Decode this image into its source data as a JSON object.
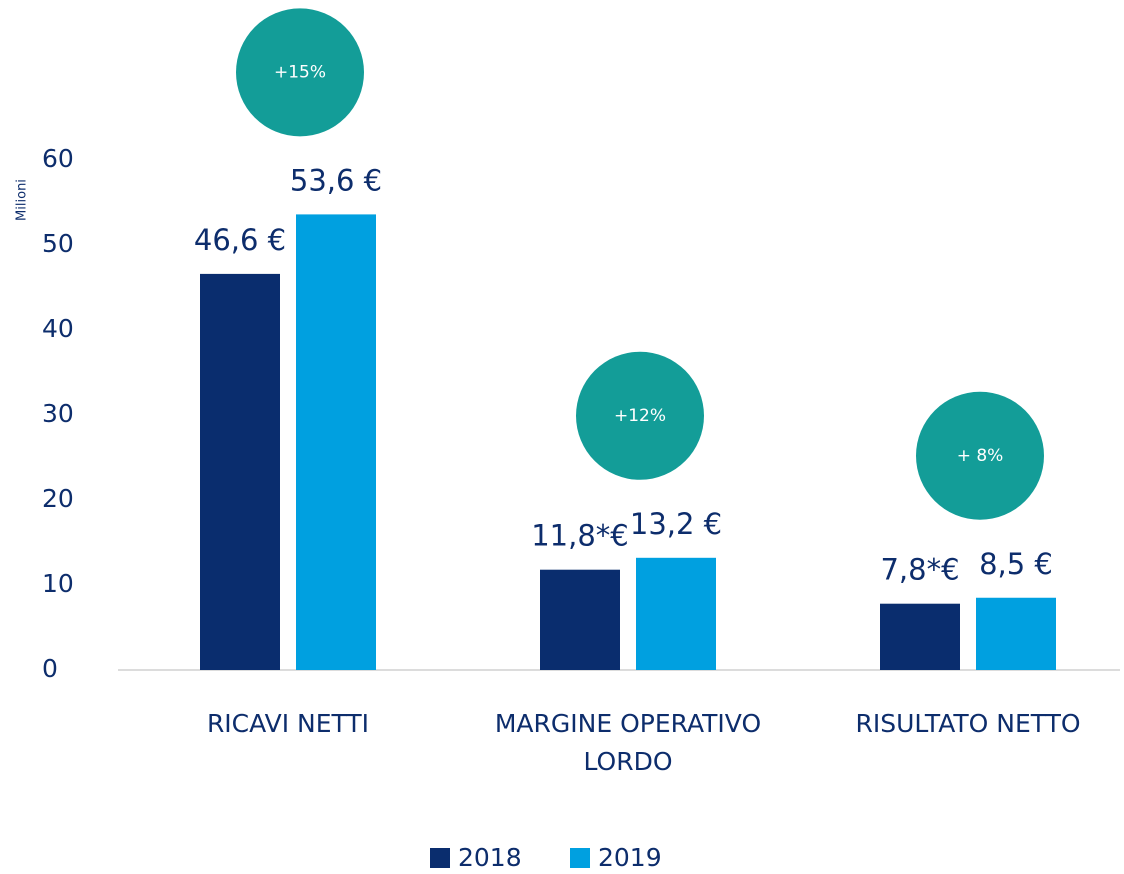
{
  "chart_data": {
    "type": "bar",
    "y_label": "Milioni",
    "categories": [
      "RICAVI NETTI",
      "MARGINE OPERATIVO LORDO",
      "RISULTATO NETTO"
    ],
    "series": [
      {
        "name": "2018",
        "color": "#0a2d6e",
        "values": [
          46.6,
          11.8,
          7.8
        ],
        "value_labels": [
          "46,6 €",
          "11,8*€",
          "7,8*€"
        ]
      },
      {
        "name": "2019",
        "color": "#00a0e0",
        "values": [
          53.6,
          13.2,
          8.5
        ],
        "value_labels": [
          "53,6 €",
          "13,2 €",
          "8,5 €"
        ]
      }
    ],
    "badges": [
      "+15%",
      "+12%",
      "+ 8%"
    ],
    "badge_color": "#139d98",
    "ylim": [
      0,
      60
    ],
    "yticks": [
      0,
      10,
      20,
      30,
      40,
      50,
      60
    ],
    "grid": false,
    "legend": "bottom"
  }
}
